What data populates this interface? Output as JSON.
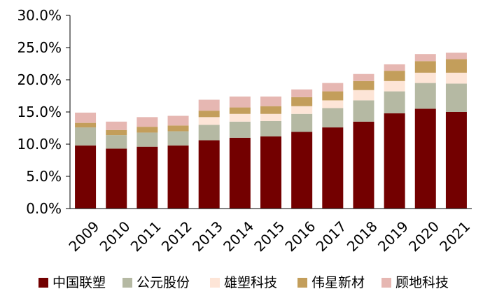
{
  "chart_data": {
    "type": "bar",
    "stacked": true,
    "categories": [
      "2009",
      "2010",
      "2011",
      "2012",
      "2013",
      "2014",
      "2015",
      "2016",
      "2017",
      "2018",
      "2019",
      "2020",
      "2021"
    ],
    "series": [
      {
        "name": "中国联塑",
        "color": "#730000",
        "values": [
          9.8,
          9.3,
          9.6,
          9.8,
          10.6,
          11.0,
          11.2,
          11.9,
          12.6,
          13.5,
          14.8,
          15.5,
          15.0
        ]
      },
      {
        "name": "公元股份",
        "color": "#b5b9a3",
        "values": [
          2.8,
          2.1,
          2.2,
          2.2,
          2.4,
          2.5,
          2.4,
          2.8,
          3.0,
          3.3,
          3.4,
          4.0,
          4.4
        ]
      },
      {
        "name": "雄塑科技",
        "color": "#fde5d7",
        "values": [
          0.0,
          0.0,
          0.0,
          0.0,
          1.2,
          1.2,
          1.1,
          1.2,
          1.2,
          1.6,
          1.6,
          1.6,
          1.7
        ]
      },
      {
        "name": "伟星新材",
        "color": "#c39e5b",
        "values": [
          0.7,
          0.8,
          0.9,
          0.9,
          1.0,
          1.0,
          1.2,
          1.4,
          1.4,
          1.4,
          1.6,
          1.8,
          2.1
        ]
      },
      {
        "name": "顾地科技",
        "color": "#e6b7b2",
        "values": [
          1.6,
          1.3,
          1.5,
          1.5,
          1.7,
          1.7,
          1.5,
          1.2,
          1.3,
          1.1,
          1.0,
          1.1,
          1.0
        ]
      }
    ],
    "ylim": [
      0,
      30
    ],
    "yticks": [
      "0.0%",
      "5.0%",
      "10.0%",
      "15.0%",
      "20.0%",
      "25.0%",
      "30.0%"
    ],
    "grid": false,
    "legend_position": "bottom"
  }
}
